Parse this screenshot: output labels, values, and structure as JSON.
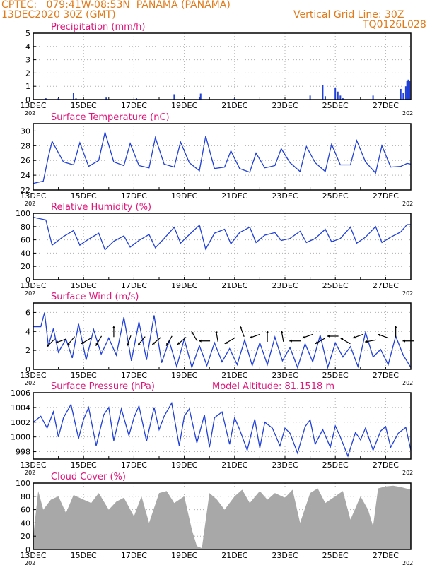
{
  "header": {
    "line1": "CPTEC:   079:41W-08:53N  PANAMA (PANAMA)",
    "line2": "13DEC2020 30Z (GMT)",
    "grid_note": "Vertical Grid Line: 30Z",
    "code": "TQ0126L028"
  },
  "colors": {
    "header": "#e07a1a",
    "title": "#e0147a",
    "line": "#1f3fd8",
    "cloud": "#a8a8a8",
    "grid": "#b0b0b0"
  },
  "x_labels": [
    "13DEC",
    "15DEC",
    "17DEC",
    "19DEC",
    "21DEC",
    "23DEC",
    "25DEC",
    "27DEC"
  ],
  "year_fragment": "202",
  "chart_data": [
    {
      "id": "precip",
      "type": "bar",
      "title": "Precipitation (mm/h)",
      "ylim": [
        0,
        5
      ],
      "yticks": [
        0,
        1,
        2,
        3,
        4,
        5
      ],
      "x_unit": "days since 13DEC 00Z",
      "x": [
        0.5,
        1.0,
        1.6,
        1.7,
        2.9,
        4.1,
        5.6,
        6.6,
        6.65,
        8.0,
        11.0,
        11.5,
        11.6,
        12.0,
        12.1,
        12.2,
        12.3,
        13.5,
        14.6,
        14.7,
        14.8,
        14.85,
        14.9,
        14.95
      ],
      "values": [
        0.1,
        0.1,
        0.5,
        0.1,
        0.15,
        0.1,
        0.4,
        0.2,
        0.45,
        0.1,
        0.3,
        1.1,
        0.25,
        0.9,
        0.6,
        0.3,
        0.1,
        0.3,
        0.8,
        0.5,
        1.0,
        1.4,
        1.5,
        1.4
      ]
    },
    {
      "id": "temp",
      "type": "line",
      "title": "Surface Temperature (nC)",
      "ylim": [
        22,
        31
      ],
      "yticks": [
        22,
        24,
        26,
        28,
        30
      ],
      "x_unit": "days since 13DEC 00Z",
      "x": [
        0,
        0.4,
        0.6,
        0.75,
        1.2,
        1.6,
        1.85,
        2.2,
        2.6,
        2.85,
        3.2,
        3.6,
        3.85,
        4.2,
        4.6,
        4.85,
        5.2,
        5.6,
        5.85,
        6.2,
        6.6,
        6.85,
        7.2,
        7.6,
        7.85,
        8.2,
        8.6,
        8.85,
        9.2,
        9.6,
        9.85,
        10.2,
        10.6,
        10.85,
        11.2,
        11.6,
        11.85,
        12.2,
        12.6,
        12.85,
        13.2,
        13.6,
        13.85,
        14.2,
        14.6,
        14.85,
        15
      ],
      "values": [
        22.9,
        23.2,
        26.5,
        28.6,
        25.8,
        25.4,
        28.4,
        25.2,
        26.0,
        29.8,
        25.8,
        25.3,
        28.3,
        25.3,
        25.0,
        29.1,
        25.5,
        25.1,
        28.5,
        25.7,
        24.6,
        29.3,
        24.9,
        25.1,
        27.3,
        24.9,
        24.4,
        27.0,
        25.0,
        25.3,
        27.6,
        25.7,
        24.5,
        27.9,
        25.7,
        24.5,
        28.2,
        25.4,
        25.4,
        28.7,
        25.8,
        24.3,
        28.0,
        25.1,
        25.2,
        25.6,
        25.5
      ]
    },
    {
      "id": "rh",
      "type": "line",
      "title": "Relative Humidity (%)",
      "ylim": [
        0,
        100
      ],
      "yticks": [
        0,
        20,
        40,
        60,
        80,
        100
      ],
      "x_unit": "days since 13DEC 00Z",
      "x": [
        0,
        0.5,
        0.75,
        1.2,
        1.6,
        1.85,
        2.2,
        2.6,
        2.85,
        3.2,
        3.6,
        3.85,
        4.2,
        4.6,
        4.85,
        5.2,
        5.6,
        5.85,
        6.2,
        6.6,
        6.85,
        7.2,
        7.6,
        7.85,
        8.2,
        8.6,
        8.85,
        9.2,
        9.6,
        9.85,
        10.2,
        10.6,
        10.85,
        11.2,
        11.6,
        11.85,
        12.2,
        12.6,
        12.85,
        13.2,
        13.6,
        13.85,
        14.2,
        14.6,
        14.85,
        15
      ],
      "values": [
        94,
        90,
        52,
        65,
        74,
        52,
        61,
        70,
        45,
        58,
        66,
        49,
        59,
        68,
        48,
        62,
        79,
        55,
        68,
        82,
        46,
        70,
        76,
        54,
        71,
        79,
        56,
        67,
        71,
        59,
        62,
        73,
        56,
        62,
        76,
        57,
        62,
        79,
        55,
        64,
        80,
        56,
        64,
        72,
        83,
        83
      ]
    },
    {
      "id": "wind",
      "type": "line",
      "title": "Surface Wind (m/s)",
      "ylim": [
        0,
        7
      ],
      "yticks": [
        0,
        2,
        4,
        6
      ],
      "x_unit": "days since 13DEC 00Z",
      "x": [
        0,
        0.3,
        0.45,
        0.6,
        0.8,
        1.0,
        1.3,
        1.55,
        1.8,
        2.1,
        2.4,
        2.7,
        3.0,
        3.3,
        3.6,
        3.9,
        4.2,
        4.5,
        4.8,
        5.1,
        5.4,
        5.7,
        6.0,
        6.3,
        6.6,
        6.9,
        7.2,
        7.5,
        7.8,
        8.1,
        8.4,
        8.7,
        9.0,
        9.3,
        9.6,
        9.9,
        10.2,
        10.5,
        10.8,
        11.1,
        11.4,
        11.7,
        12.0,
        12.3,
        12.6,
        12.9,
        13.2,
        13.5,
        13.8,
        14.1,
        14.4,
        14.7,
        15
      ],
      "values": [
        4.5,
        4.5,
        6.0,
        2.5,
        4.3,
        1.8,
        3.2,
        1.2,
        4.8,
        1.0,
        4.2,
        1.6,
        3.3,
        1.5,
        5.5,
        0.9,
        5.0,
        1.0,
        5.7,
        0.7,
        3.0,
        0.3,
        3.2,
        0.2,
        2.5,
        0.4,
        2.8,
        0.8,
        2.2,
        0.5,
        3.1,
        0.4,
        2.8,
        0.5,
        3.4,
        0.9,
        2.3,
        0.2,
        2.7,
        0.8,
        3.6,
        0.2,
        2.8,
        1.3,
        2.4,
        0.3,
        3.9,
        1.3,
        2.1,
        0.5,
        3.5,
        1.5,
        0.2
      ],
      "arrows": {
        "x": [
          0.7,
          1.1,
          1.5,
          2.1,
          2.6,
          3.2,
          3.8,
          4.3,
          4.9,
          5.4,
          5.9,
          6.4,
          6.8,
          7.3,
          7.8,
          8.3,
          8.8,
          9.3,
          9.9,
          10.4,
          10.9,
          11.4,
          11.9,
          12.4,
          12.9,
          13.4,
          13.9,
          14.4,
          14.9
        ],
        "y": [
          2.8,
          3.0,
          3.0,
          3.0,
          3.0,
          4.0,
          3.0,
          3.0,
          3.0,
          3.0,
          3.0,
          3.5,
          3.0,
          3.5,
          3.0,
          4.0,
          3.5,
          3.5,
          3.5,
          3.0,
          3.5,
          3.0,
          3.5,
          3.0,
          3.5,
          3.0,
          3.5,
          4.0,
          3.0
        ],
        "dir_deg": [
          225,
          200,
          230,
          210,
          240,
          90,
          250,
          230,
          220,
          240,
          220,
          120,
          180,
          100,
          210,
          110,
          200,
          90,
          100,
          180,
          200,
          210,
          180,
          150,
          200,
          190,
          160,
          90,
          180
        ]
      }
    },
    {
      "id": "pres",
      "type": "line",
      "title": "Surface Pressure (hPa)",
      "annotation": "Model Altitude: 81.1518 m",
      "ylim": [
        997,
        1006
      ],
      "yticks": [
        998,
        1000,
        1002,
        1004,
        1006
      ],
      "x_unit": "days since 13DEC 00Z",
      "x": [
        0,
        0.3,
        0.55,
        0.8,
        1.0,
        1.2,
        1.5,
        1.8,
        2.0,
        2.2,
        2.5,
        2.8,
        3.0,
        3.2,
        3.5,
        3.8,
        4.0,
        4.2,
        4.5,
        4.8,
        5.0,
        5.2,
        5.5,
        5.8,
        6.0,
        6.2,
        6.5,
        6.8,
        7.0,
        7.2,
        7.5,
        7.8,
        8.0,
        8.2,
        8.5,
        8.8,
        9.0,
        9.2,
        9.5,
        9.8,
        10.0,
        10.2,
        10.5,
        10.8,
        11.0,
        11.2,
        11.5,
        11.8,
        12.0,
        12.2,
        12.5,
        12.8,
        13.0,
        13.2,
        13.5,
        13.8,
        14.0,
        14.2,
        14.5,
        14.8,
        15
      ],
      "values": [
        1002.0,
        1002.8,
        1001.2,
        1003.4,
        1000.0,
        1002.6,
        1004.4,
        999.8,
        1002.4,
        1004.0,
        998.8,
        1003.0,
        1004.0,
        999.5,
        1003.8,
        1000.2,
        1002.6,
        1004.2,
        999.4,
        1004.0,
        1001.0,
        1002.8,
        1004.6,
        998.8,
        1002.8,
        1003.8,
        999.2,
        1003.0,
        998.6,
        1002.6,
        1003.4,
        999.0,
        1002.6,
        1001.0,
        998.2,
        1002.4,
        998.5,
        1002.0,
        1001.2,
        998.8,
        1001.2,
        1000.5,
        997.8,
        1001.4,
        1002.3,
        999.0,
        1001.0,
        998.6,
        1001.5,
        1000.0,
        997.4,
        1000.6,
        999.6,
        1001.2,
        998.2,
        1000.8,
        1001.4,
        998.6,
        1000.5,
        1001.3,
        998.2
      ]
    },
    {
      "id": "cloud",
      "type": "area",
      "title": "Cloud Cover (%)",
      "ylim": [
        0,
        100
      ],
      "yticks": [
        0,
        20,
        40,
        60,
        80,
        100
      ],
      "x_unit": "days since 13DEC 00Z",
      "x": [
        0,
        0.2,
        0.4,
        0.7,
        1.0,
        1.3,
        1.6,
        2.0,
        2.3,
        2.6,
        3.0,
        3.3,
        3.6,
        4.0,
        4.3,
        4.6,
        5.0,
        5.3,
        5.6,
        6.0,
        6.3,
        6.5,
        6.7,
        7.0,
        7.3,
        7.6,
        8.0,
        8.3,
        8.6,
        9.0,
        9.3,
        9.6,
        10.0,
        10.3,
        10.6,
        11.0,
        11.3,
        11.6,
        12.0,
        12.3,
        12.6,
        13.0,
        13.3,
        13.5,
        13.7,
        14.0,
        14.3,
        14.6,
        15
      ],
      "values": [
        20,
        88,
        60,
        75,
        80,
        55,
        82,
        75,
        70,
        85,
        60,
        72,
        78,
        50,
        80,
        40,
        85,
        88,
        70,
        80,
        30,
        5,
        2,
        85,
        75,
        60,
        80,
        90,
        70,
        88,
        75,
        85,
        78,
        90,
        40,
        85,
        92,
        70,
        80,
        88,
        45,
        80,
        60,
        35,
        92,
        95,
        96,
        94,
        90
      ]
    }
  ]
}
